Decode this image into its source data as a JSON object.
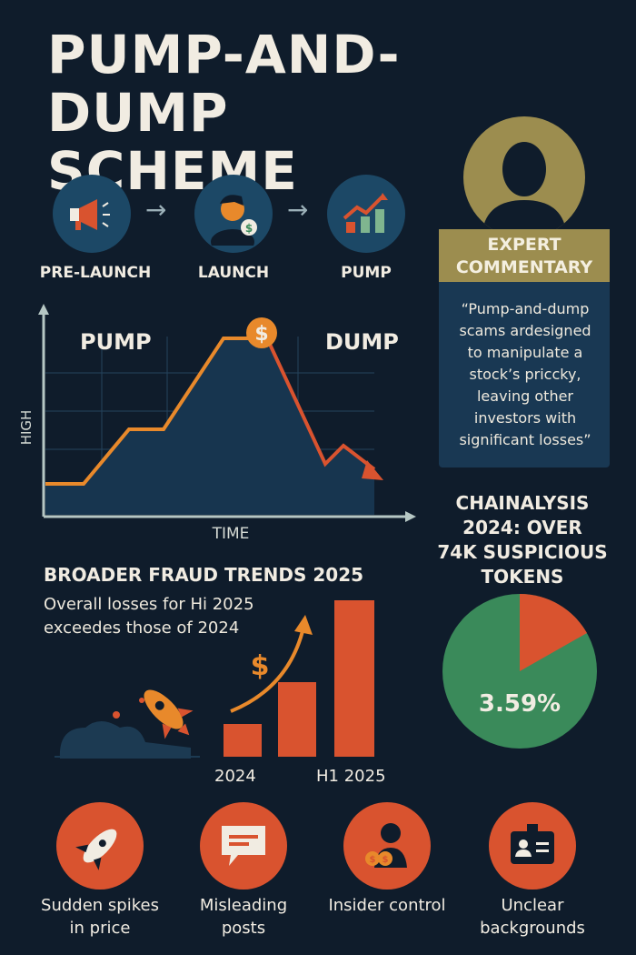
{
  "title_line1": "PUMP-AND-DUMP",
  "title_line2": "SCHEME",
  "steps": [
    {
      "label": "PRE-LAUNCH",
      "icon": "megaphone-icon"
    },
    {
      "label": "LAUNCH",
      "icon": "person-with-coin-icon"
    },
    {
      "label": "PUMP",
      "icon": "rising-chart-icon"
    }
  ],
  "pump_chart": {
    "pump_label": "PUMP",
    "dump_label": "DUMP",
    "y_axis_label": "HIGH",
    "x_axis_label": "TIME",
    "coin_symbol": "$",
    "colors": {
      "pump": "#e8892b",
      "dump": "#d9532f",
      "area": "#17354f"
    }
  },
  "expert": {
    "heading_line1": "EXPERT",
    "heading_line2": "COMMENTARY",
    "quote_lines": [
      "“Pump-and-dump",
      "scams ardesigned",
      "to manipulate a",
      "stock’s priccky,",
      "leaving other",
      "investors with",
      "significant losses”"
    ]
  },
  "chainalysis": {
    "lines": [
      "CHAINALYSIS",
      "2024: OVER",
      "74K SUSPICIOUS",
      "TOKENS"
    ],
    "pie_label": "3.59%",
    "pie_colors": {
      "main": "#3a8a5a",
      "slice": "#d9532f"
    }
  },
  "fraud_trends": {
    "title": "BROADER FRAUD TRENDS 2025",
    "subtitle_line1": "Overall losses for Hi 2025",
    "subtitle_line2": "exceedes those of 2024",
    "bar_label_left": "2024",
    "bar_label_right": "H1 2025",
    "dollar_symbol": "$"
  },
  "signs": [
    {
      "line1": "Sudden spikes",
      "line2": "in price",
      "icon": "rocket-icon"
    },
    {
      "line1": "Misleading",
      "line2": "posts",
      "icon": "speech-bubble-icon"
    },
    {
      "line1": "Insider control",
      "line2": "",
      "icon": "insider-person-icon"
    },
    {
      "line1": "Unclear",
      "line2": "backgrounds",
      "icon": "id-badge-icon"
    }
  ]
}
